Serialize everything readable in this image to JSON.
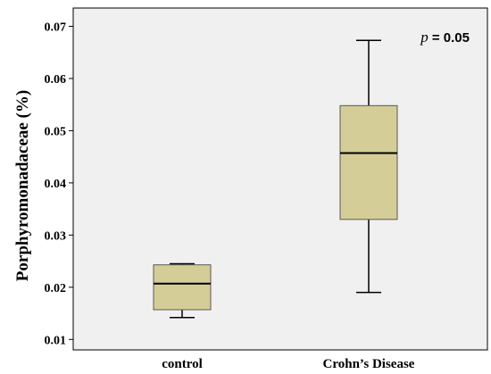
{
  "chart_data": {
    "type": "box",
    "title": "",
    "xlabel": "",
    "ylabel": "Porphyromonadaceae (%)",
    "ylim": [
      0.008,
      0.0735
    ],
    "yticks": [
      0.01,
      0.02,
      0.03,
      0.04,
      0.05,
      0.06,
      0.07
    ],
    "ytick_labels": [
      "0.01",
      "0.02",
      "0.03",
      "0.04",
      "0.05",
      "0.06",
      "0.07"
    ],
    "grid": false,
    "categories": [
      "control",
      "Crohn’s Disease"
    ],
    "boxes": [
      {
        "category": "control",
        "whisker_low": 0.0142,
        "q1": 0.0157,
        "median": 0.0207,
        "q3": 0.0243,
        "whisker_high": 0.0245
      },
      {
        "category": "Crohn’s Disease",
        "whisker_low": 0.019,
        "q1": 0.033,
        "median": 0.0457,
        "q3": 0.0548,
        "whisker_high": 0.0673
      }
    ],
    "annotation": {
      "p_symbol": "p",
      "p_value": " = 0.05"
    },
    "colors": {
      "box_fill": "#d5cd97",
      "box_stroke": "#595959",
      "plot_bg": "#f0f0f0"
    }
  }
}
